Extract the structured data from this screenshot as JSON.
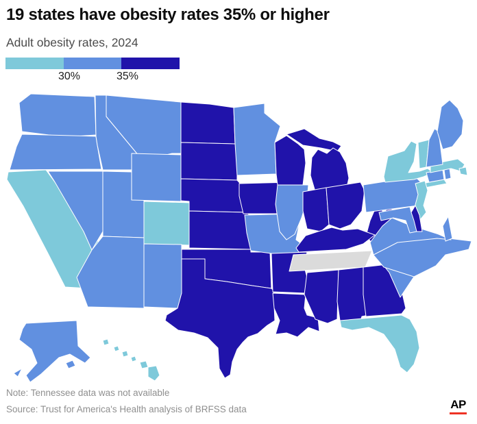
{
  "header": {
    "title": "19 states have obesity rates 35% or higher",
    "subtitle": "Adult obesity rates, 2024"
  },
  "legend": {
    "bins": [
      {
        "range": "under 30%",
        "color": "#7ec9da"
      },
      {
        "range": "30% to 35%",
        "color": "#6190e0"
      },
      {
        "range": "35% or higher",
        "color": "#2013aa"
      }
    ],
    "tick_labels": [
      "30%",
      "35%"
    ]
  },
  "chart_data": {
    "type": "heatmap",
    "title": "19 states have obesity rates 35% or higher",
    "subtitle": "Adult obesity rates, 2024",
    "legend_thresholds": [
      "30%",
      "35%"
    ],
    "categories": {
      "under_30": "#7ec9da",
      "30_to_35": "#6190e0",
      "35_plus": "#2013aa",
      "no_data": "#dbdbdb"
    },
    "border_color": "#ffffff",
    "states": {
      "WA": "30_to_35",
      "OR": "30_to_35",
      "CA": "under_30",
      "NV": "30_to_35",
      "ID": "30_to_35",
      "MT": "30_to_35",
      "WY": "30_to_35",
      "UT": "30_to_35",
      "CO": "under_30",
      "AZ": "30_to_35",
      "NM": "30_to_35",
      "ND": "35_plus",
      "SD": "35_plus",
      "NE": "35_plus",
      "KS": "35_plus",
      "OK": "35_plus",
      "TX": "35_plus",
      "MN": "30_to_35",
      "IA": "35_plus",
      "MO": "30_to_35",
      "AR": "35_plus",
      "LA": "35_plus",
      "WI": "35_plus",
      "MI": "35_plus",
      "IL": "30_to_35",
      "IN": "35_plus",
      "OH": "35_plus",
      "WV": "35_plus",
      "KY": "35_plus",
      "TN": "no_data",
      "MS": "35_plus",
      "AL": "35_plus",
      "GA": "35_plus",
      "SC": "30_to_35",
      "NC": "30_to_35",
      "VA": "30_to_35",
      "PA": "30_to_35",
      "NY": "under_30",
      "NJ": "under_30",
      "DE": "35_plus",
      "MD": "30_to_35",
      "CT": "30_to_35",
      "RI": "30_to_35",
      "MA": "under_30",
      "VT": "under_30",
      "NH": "30_to_35",
      "ME": "30_to_35",
      "FL": "under_30",
      "AK": "30_to_35",
      "HI": "under_30"
    }
  },
  "footer": {
    "note": "Note: Tennessee data was not available",
    "source": "Source: Trust for America's Health analysis of BRFSS data",
    "logo": "AP"
  }
}
